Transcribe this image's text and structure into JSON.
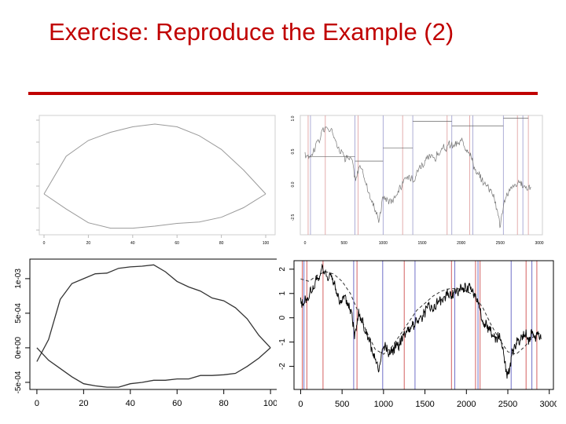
{
  "slide": {
    "title": "Exercise: Reproduce the Example (2)",
    "title_color": "#c00000",
    "rule_color": "#c00000"
  },
  "chart_data": [
    {
      "id": "small-envelope",
      "type": "line",
      "x": [
        0,
        10,
        20,
        30,
        40,
        50,
        60,
        70,
        80,
        90,
        100
      ],
      "xticks": [
        "0",
        "20",
        "40",
        "60",
        "80",
        "100"
      ],
      "xlim": [
        0,
        100
      ],
      "ylim": [
        -0.00055,
        0.0011
      ],
      "series": [
        {
          "values": [
            0.0,
            0.00055,
            0.00078,
            0.0009,
            0.00098,
            0.00102,
            0.00098,
            0.00085,
            0.00065,
            0.00035,
            0.0
          ]
        },
        {
          "values": [
            0.0,
            -0.00022,
            -0.00042,
            -0.0005,
            -0.0005,
            -0.00047,
            -0.00043,
            -0.00041,
            -0.00034,
            -0.0002,
            0.0
          ]
        }
      ],
      "color": "#9a9a9a"
    },
    {
      "id": "small-segments",
      "type": "line",
      "xlim": [
        0,
        3000
      ],
      "ylim": [
        -2.8,
        2.4
      ],
      "xticks": [
        "0",
        "500",
        "1000",
        "1500",
        "2000",
        "2500",
        "3000"
      ],
      "yticks": [
        "-2.5",
        "0.0",
        "0.5",
        "1.0"
      ],
      "color": "#777777",
      "vlines": [
        {
          "x": 40,
          "color": "#d99"
        },
        {
          "x": 70,
          "color": "#99c"
        },
        {
          "x": 260,
          "color": "#d99"
        },
        {
          "x": 640,
          "color": "#99c"
        },
        {
          "x": 680,
          "color": "#d99"
        },
        {
          "x": 1000,
          "color": "#99c"
        },
        {
          "x": 1250,
          "color": "#d99"
        },
        {
          "x": 1380,
          "color": "#99c"
        },
        {
          "x": 1820,
          "color": "#d99"
        },
        {
          "x": 1880,
          "color": "#99c"
        },
        {
          "x": 2110,
          "color": "#d99"
        },
        {
          "x": 2150,
          "color": "#99c"
        },
        {
          "x": 2540,
          "color": "#99c"
        },
        {
          "x": 2720,
          "color": "#d99"
        },
        {
          "x": 2790,
          "color": "#99c"
        },
        {
          "x": 2860,
          "color": "#d99"
        }
      ],
      "steps": [
        {
          "x1": 40,
          "x2": 640,
          "y": 0.6
        },
        {
          "x1": 640,
          "x2": 1000,
          "y": 0.4
        },
        {
          "x1": 1000,
          "x2": 1380,
          "y": 1.0
        },
        {
          "x1": 1380,
          "x2": 1880,
          "y": 2.2
        },
        {
          "x1": 1880,
          "x2": 2540,
          "y": 2.0
        },
        {
          "x1": 2540,
          "x2": 2860,
          "y": 2.35
        }
      ]
    },
    {
      "id": "large-envelope",
      "type": "line",
      "x": [
        0,
        5,
        10,
        15,
        20,
        25,
        30,
        35,
        40,
        45,
        50,
        55,
        60,
        65,
        70,
        75,
        80,
        85,
        90,
        95,
        100
      ],
      "xticks": [
        "0",
        "20",
        "40",
        "60",
        "80",
        "100"
      ],
      "xlim": [
        -3,
        104
      ],
      "ylim": [
        -0.00058,
        0.00126
      ],
      "yticks": [
        "-5e-04",
        "0e+00",
        "5e-04",
        "1e-03"
      ],
      "series": [
        {
          "values": [
            -0.0002,
            0.00012,
            0.0007,
            0.00093,
            0.001,
            0.00107,
            0.00108,
            0.00115,
            0.00117,
            0.00118,
            0.0012,
            0.0011,
            0.00096,
            0.00088,
            0.00082,
            0.00072,
            0.00068,
            0.00058,
            0.00042,
            0.00018,
            0.0
          ]
        },
        {
          "values": [
            0.0,
            -0.00018,
            -0.0003,
            -0.00042,
            -0.00052,
            -0.00055,
            -0.00057,
            -0.00057,
            -0.00052,
            -0.0005,
            -0.00047,
            -0.00047,
            -0.00045,
            -0.00045,
            -0.0004,
            -0.0004,
            -0.00039,
            -0.00037,
            -0.00027,
            -0.00015,
            0.0
          ]
        }
      ],
      "color": "#333333"
    },
    {
      "id": "large-fit",
      "type": "line",
      "xlim": [
        -80,
        3050
      ],
      "ylim": [
        -2.95,
        2.35
      ],
      "xticks": [
        "0",
        "500",
        "1000",
        "1500",
        "2000",
        "2500",
        "3000"
      ],
      "yticks": [
        "-2",
        "-1",
        "0",
        "1",
        "2"
      ],
      "vlines": [
        {
          "x": 20,
          "color": "#d46060"
        },
        {
          "x": 40,
          "color": "#7070c8"
        },
        {
          "x": 75,
          "color": "#d46060"
        },
        {
          "x": 270,
          "color": "#d46060"
        },
        {
          "x": 640,
          "color": "#7070c8"
        },
        {
          "x": 680,
          "color": "#d46060"
        },
        {
          "x": 990,
          "color": "#7070c8"
        },
        {
          "x": 1250,
          "color": "#d46060"
        },
        {
          "x": 1380,
          "color": "#7070c8"
        },
        {
          "x": 1820,
          "color": "#d46060"
        },
        {
          "x": 1860,
          "color": "#7070c8"
        },
        {
          "x": 2110,
          "color": "#d46060"
        },
        {
          "x": 2140,
          "color": "#7070c8"
        },
        {
          "x": 2165,
          "color": "#d46060"
        },
        {
          "x": 2540,
          "color": "#7070c8"
        },
        {
          "x": 2720,
          "color": "#d46060"
        },
        {
          "x": 2790,
          "color": "#7070c8"
        },
        {
          "x": 2850,
          "color": "#d46060"
        }
      ],
      "dashed": {
        "x": [
          0,
          100,
          200,
          300,
          400,
          500,
          600,
          700,
          800,
          900,
          1000,
          1100,
          1200,
          1300,
          1400,
          1500,
          1600,
          1700,
          1800,
          1900,
          2000,
          2100,
          2200,
          2300,
          2400,
          2500,
          2600,
          2700,
          2800,
          2900
        ],
        "y": [
          1.6,
          1.5,
          1.75,
          1.9,
          1.8,
          1.5,
          1.0,
          0.2,
          -0.6,
          -1.3,
          -1.5,
          -1.2,
          -0.7,
          -0.2,
          0.3,
          0.6,
          0.9,
          1.1,
          1.2,
          1.2,
          1.1,
          0.9,
          0.4,
          -0.3,
          -0.9,
          -1.4,
          -1.5,
          -1.2,
          -0.8,
          -0.6
        ]
      },
      "series_anchors": {
        "x": [
          0,
          60,
          120,
          200,
          260,
          320,
          400,
          460,
          520,
          600,
          650,
          700,
          800,
          900,
          940,
          1000,
          1100,
          1200,
          1300,
          1400,
          1500,
          1600,
          1700,
          1800,
          1900,
          2000,
          2050,
          2100,
          2150,
          2200,
          2300,
          2400,
          2450,
          2500,
          2550,
          2600,
          2700,
          2800,
          2900
        ],
        "y": [
          0.6,
          0.7,
          1.0,
          1.5,
          1.95,
          1.8,
          1.4,
          0.8,
          0.7,
          0.4,
          -0.6,
          0.3,
          -0.8,
          -1.8,
          -2.3,
          -1.2,
          -1.4,
          -0.9,
          -0.4,
          -0.2,
          0.3,
          0.5,
          0.7,
          1.0,
          1.1,
          1.2,
          1.15,
          1.0,
          0.4,
          -0.2,
          -0.6,
          -0.9,
          -1.6,
          -2.5,
          -1.5,
          -1.0,
          -0.7,
          -0.7,
          -0.8
        ]
      },
      "colors": {
        "series": "#000000",
        "dashed": "#333333"
      }
    }
  ]
}
